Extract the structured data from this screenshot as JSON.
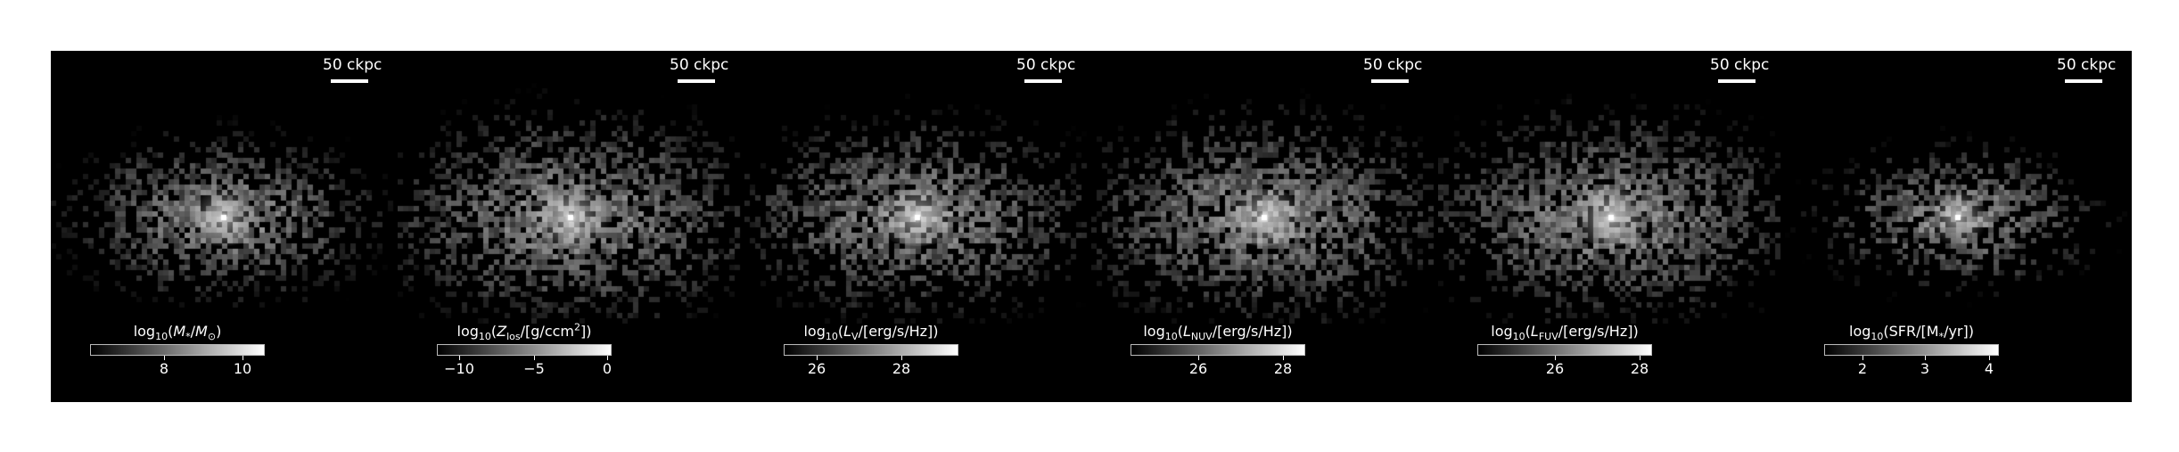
{
  "scalebar_label": "50 ckpc",
  "panels": [
    {
      "id": "stellar-mass",
      "cbar": {
        "prefix": "log",
        "sub": "10",
        "open": "(",
        "var": "M",
        "var_sub": "*",
        "mid": "/",
        "unit": "M",
        "unit_sub": "⊙",
        "close": ")"
      },
      "ticks": [
        {
          "label": "8",
          "pos": 0.43
        },
        {
          "label": "10",
          "pos": 0.88
        }
      ],
      "blob": {
        "spread": 0.55,
        "density": 0.55,
        "core": 1.0
      }
    },
    {
      "id": "metal-surface-density",
      "cbar": {
        "prefix": "log",
        "sub": "10",
        "open": "(",
        "var": "Z",
        "var_sub": "los",
        "mid": "/",
        "unit": "[g/ccm",
        "unit_sup": "2",
        "close": "])"
      },
      "ticks": [
        {
          "label": "−10",
          "pos": 0.13
        },
        {
          "label": "−5",
          "pos": 0.56
        },
        {
          "label": "0",
          "pos": 0.985
        }
      ],
      "blob": {
        "spread": 1.0,
        "density": 1.0,
        "core": 0.95
      }
    },
    {
      "id": "v-band-luminosity",
      "cbar": {
        "prefix": "log",
        "sub": "10",
        "open": "(",
        "var": "L",
        "var_sub": "V",
        "mid": "/",
        "unit": "[erg/s/Hz]",
        "close": ")"
      },
      "ticks": [
        {
          "label": "26",
          "pos": 0.19
        },
        {
          "label": "28",
          "pos": 0.68
        }
      ],
      "blob": {
        "spread": 0.85,
        "density": 0.75,
        "core": 1.0
      }
    },
    {
      "id": "nuv-luminosity",
      "cbar": {
        "prefix": "log",
        "sub": "10",
        "open": "(",
        "var": "L",
        "var_sub": "NUV",
        "mid": "/",
        "unit": "[erg/s/Hz]",
        "close": ")"
      },
      "ticks": [
        {
          "label": "26",
          "pos": 0.39
        },
        {
          "label": "28",
          "pos": 0.88
        }
      ],
      "blob": {
        "spread": 0.95,
        "density": 0.95,
        "core": 0.95
      }
    },
    {
      "id": "fuv-luminosity",
      "cbar": {
        "prefix": "log",
        "sub": "10",
        "open": "(",
        "var": "L",
        "var_sub": "FUV",
        "mid": "/",
        "unit": "[erg/s/Hz]",
        "close": ")"
      },
      "ticks": [
        {
          "label": "26",
          "pos": 0.45
        },
        {
          "label": "28",
          "pos": 0.94
        }
      ],
      "blob": {
        "spread": 0.95,
        "density": 1.0,
        "core": 0.95
      }
    },
    {
      "id": "star-formation-rate",
      "cbar": {
        "prefix": "log",
        "sub": "10",
        "open": "(",
        "var": "SFR/[M",
        "var_sub": "*",
        "mid": "",
        "unit": "/yr]",
        "close": ")"
      },
      "ticks": [
        {
          "label": "2",
          "pos": 0.22
        },
        {
          "label": "3",
          "pos": 0.58
        },
        {
          "label": "4",
          "pos": 0.955
        }
      ],
      "blob": {
        "spread": 0.35,
        "density": 0.3,
        "core": 0.9
      }
    }
  ]
}
